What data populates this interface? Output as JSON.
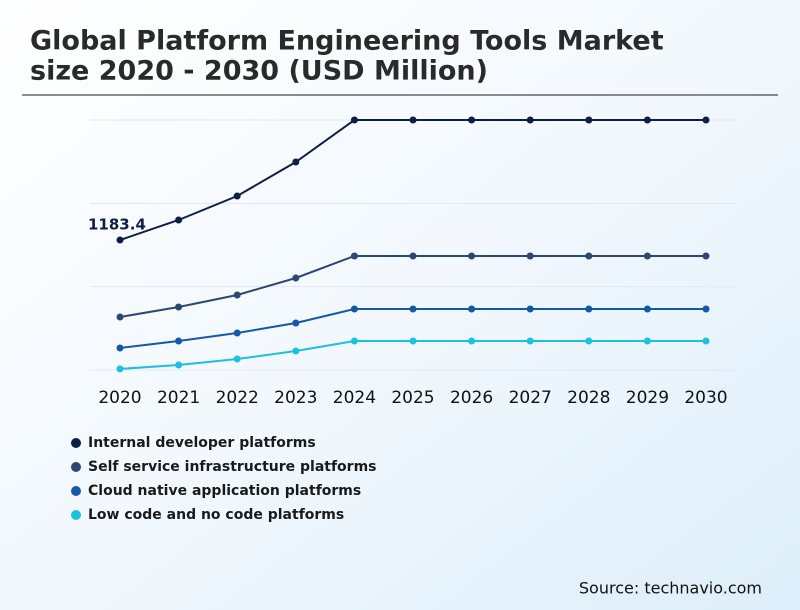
{
  "chart_data": {
    "type": "line",
    "title": [
      "Global Platform Engineering Tools Market",
      "size 2020 - 2030 (USD Million)"
    ],
    "source": "Source: technavio.com",
    "categories": [
      "2020",
      "2021",
      "2022",
      "2023",
      "2024",
      "2025",
      "2026",
      "2027",
      "2028",
      "2029",
      "2030"
    ],
    "ylim": [
      0,
      2276
    ],
    "grid": true,
    "series": [
      {
        "name": "Internal developer platforms",
        "color": "#0d1f45",
        "values": [
          1183.4,
          1365.6,
          1584.1,
          1893.6,
          2276,
          2276,
          2276,
          2276,
          2276,
          2276,
          2276
        ]
      },
      {
        "name": "Self service infrastructure platforms",
        "color": "#2e4770",
        "values": [
          482.5,
          573.6,
          682.8,
          837.6,
          1037.9,
          1037.9,
          1037.9,
          1037.9,
          1037.9,
          1037.9,
          1037.9
        ]
      },
      {
        "name": "Cloud native application platforms",
        "color": "#1458a8",
        "values": [
          200.3,
          264.0,
          336.8,
          427.9,
          555.3,
          555.3,
          555.3,
          555.3,
          555.3,
          555.3,
          555.3
        ]
      },
      {
        "name": "Low code and no code platforms",
        "color": "#1ec0e0",
        "values": [
          10,
          45.5,
          100.1,
          173.0,
          264.0,
          264.0,
          264.0,
          264.0,
          264.0,
          264.0,
          264.0
        ]
      }
    ],
    "labeled_points": [
      [
        0,
        0
      ]
    ]
  }
}
